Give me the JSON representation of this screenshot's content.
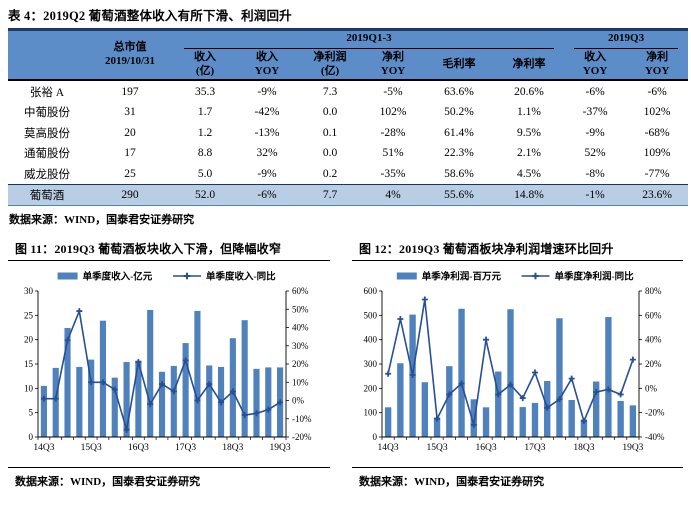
{
  "colors": {
    "header_blue": "#5C8DC8",
    "highlight_row": "#B9CDE5",
    "top_border_navy": "#1F3864",
    "bar": "#4F81BD",
    "line": "#274F94"
  },
  "table": {
    "title": "表 4：2019Q2 葡萄酒整体收入有所下滑、利润回升",
    "header": {
      "market_cap_line1": "总市值",
      "market_cap_line2": "2019/10/31",
      "group1": "2019Q1-3",
      "group2": "2019Q3"
    },
    "subheaders": [
      {
        "l1": "收入",
        "l2": "(亿)"
      },
      {
        "l1": "收入",
        "l2": "YOY"
      },
      {
        "l1": "净利润",
        "l2": "(亿)"
      },
      {
        "l1": "净利",
        "l2": "YOY"
      },
      {
        "l1": "毛利率",
        "l2": ""
      },
      {
        "l1": "净利率",
        "l2": ""
      },
      {
        "l1": "收入",
        "l2": "YOY"
      },
      {
        "l1": "净利",
        "l2": "YOY"
      }
    ],
    "rows": [
      {
        "name": "张裕 A",
        "cells": [
          "197",
          "35.3",
          "-9%",
          "7.3",
          "-5%",
          "63.6%",
          "20.6%",
          "-6%",
          "-6%"
        ],
        "highlight": false
      },
      {
        "name": "中葡股份",
        "cells": [
          "31",
          "1.7",
          "-42%",
          "0.0",
          "102%",
          "50.2%",
          "1.1%",
          "-37%",
          "102%"
        ],
        "highlight": false
      },
      {
        "name": "莫高股份",
        "cells": [
          "20",
          "1.2",
          "-13%",
          "0.1",
          "-28%",
          "61.4%",
          "9.5%",
          "-9%",
          "-68%"
        ],
        "highlight": false
      },
      {
        "name": "通葡股份",
        "cells": [
          "17",
          "8.8",
          "32%",
          "0.0",
          "51%",
          "22.3%",
          "2.1%",
          "52%",
          "109%"
        ],
        "highlight": false
      },
      {
        "name": "威龙股份",
        "cells": [
          "25",
          "5.0",
          "-9%",
          "0.2",
          "-35%",
          "58.6%",
          "4.5%",
          "-8%",
          "-77%"
        ],
        "highlight": false
      },
      {
        "name": "葡萄酒",
        "cells": [
          "290",
          "52.0",
          "-6%",
          "7.7",
          "4%",
          "55.6%",
          "14.8%",
          "-1%",
          "23.6%"
        ],
        "highlight": true
      }
    ],
    "source": "数据来源：WIND，国泰君安证券研究"
  },
  "figures": [
    {
      "title": "图 11：2019Q3 葡萄酒板块收入下滑，但降幅收窄",
      "source": "数据来源：WIND，国泰君安证券研究"
    },
    {
      "title": "图 12：2019Q3 葡萄酒板块净利润增速环比回升",
      "source": "数据来源：WIND，国泰君安证券研究"
    }
  ],
  "chart_data": [
    {
      "type": "bar",
      "title": "图 11：2019Q3 葡萄酒板块收入下滑，但降幅收窄",
      "xlabel": "",
      "ylabel": "",
      "categories": [
        "14Q3",
        "14Q4",
        "15Q1",
        "15Q2",
        "15Q3",
        "15Q4",
        "16Q1",
        "16Q2",
        "16Q3",
        "16Q4",
        "17Q1",
        "17Q2",
        "17Q3",
        "17Q4",
        "18Q1",
        "18Q2",
        "18Q3",
        "18Q4",
        "19Q1",
        "19Q2",
        "19Q3"
      ],
      "series": [
        {
          "name": "单季度收入-亿元",
          "type": "bar",
          "axis": "left",
          "values": [
            10.5,
            14.2,
            22.4,
            14.4,
            15.9,
            23.9,
            12.2,
            15.4,
            15.7,
            26.1,
            13.4,
            14.6,
            19.3,
            25.9,
            14.7,
            14.4,
            20.3,
            24.0,
            14.0,
            14.3,
            14.3
          ]
        },
        {
          "name": "单季度收入-同比",
          "type": "line",
          "axis": "right",
          "values": [
            1,
            1,
            33,
            49,
            10,
            10,
            6,
            -16,
            21,
            -2,
            9,
            5,
            22,
            0,
            9,
            -1,
            5,
            -8,
            -7,
            -5,
            -1
          ]
        }
      ],
      "left_axis": {
        "min": 0,
        "max": 30,
        "ticks": [
          "0",
          "5",
          "10",
          "15",
          "20",
          "25",
          "30"
        ]
      },
      "right_axis": {
        "min": -20,
        "max": 60,
        "ticks": [
          "-20%",
          "-10%",
          "0%",
          "10%",
          "20%",
          "30%",
          "40%",
          "50%",
          "60%"
        ]
      },
      "xticklabels": [
        "14Q3",
        "15Q3",
        "16Q3",
        "17Q3",
        "18Q3",
        "19Q3"
      ],
      "legend_position": "top",
      "grid": false
    },
    {
      "type": "bar",
      "title": "图 12：2019Q3 葡萄酒板块净利润增速环比回升",
      "xlabel": "",
      "ylabel": "",
      "categories": [
        "14Q3",
        "14Q4",
        "15Q1",
        "15Q2",
        "15Q3",
        "15Q4",
        "16Q1",
        "16Q2",
        "16Q3",
        "16Q4",
        "17Q1",
        "17Q2",
        "17Q3",
        "17Q4",
        "18Q1",
        "18Q2",
        "18Q3",
        "18Q4",
        "19Q1",
        "19Q2",
        "19Q3"
      ],
      "series": [
        {
          "name": "单季净利润-百万元",
          "type": "bar",
          "axis": "left",
          "values": [
            122,
            303,
            503,
            225,
            80,
            291,
            527,
            155,
            122,
            269,
            525,
            123,
            140,
            230,
            488,
            152,
            72,
            228,
            493,
            148,
            130
          ]
        },
        {
          "name": "单季度净利润-同比",
          "type": "line",
          "axis": "right",
          "values": [
            12,
            57,
            11,
            73,
            -25,
            -5,
            4,
            -30,
            40,
            -5,
            3,
            -8,
            13,
            -16,
            -9,
            8,
            -27,
            -3,
            -1,
            -5,
            23.6
          ]
        }
      ],
      "left_axis": {
        "min": 0,
        "max": 600,
        "ticks": [
          "0",
          "100",
          "200",
          "300",
          "400",
          "500",
          "600"
        ]
      },
      "right_axis": {
        "min": -40,
        "max": 80,
        "ticks": [
          "-40%",
          "-20%",
          "0%",
          "20%",
          "40%",
          "60%",
          "80%"
        ]
      },
      "xticklabels": [
        "14Q3",
        "15Q3",
        "16Q3",
        "17Q3",
        "18Q3",
        "19Q3"
      ],
      "legend_position": "top",
      "grid": false
    }
  ]
}
